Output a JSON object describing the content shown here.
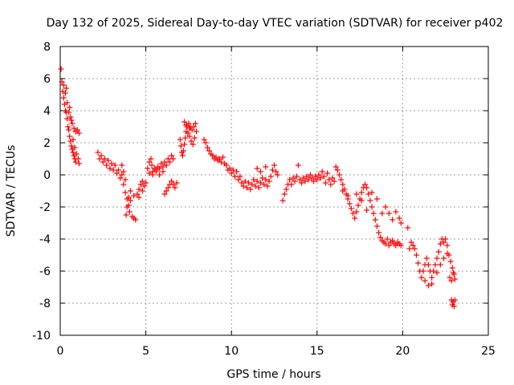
{
  "chart_data": {
    "type": "scatter",
    "title": "Day 132 of 2025, Sidereal Day-to-day VTEC variation (SDTVAR) for receiver p402",
    "xlabel": "GPS time / hours",
    "ylabel": "SDTVAR / TECUs",
    "xlim": [
      0,
      25
    ],
    "ylim": [
      -10,
      8
    ],
    "xticks": [
      0,
      5,
      10,
      15,
      20,
      25
    ],
    "yticks": [
      -10,
      -8,
      -6,
      -4,
      -2,
      0,
      2,
      4,
      6,
      8
    ],
    "grid": true,
    "marker": "+",
    "color": "#ff0000",
    "series": [
      {
        "name": "p402",
        "points": [
          [
            0.05,
            6.6
          ],
          [
            0.1,
            5.8
          ],
          [
            0.15,
            5.2
          ],
          [
            0.2,
            4.8
          ],
          [
            0.25,
            4.4
          ],
          [
            0.3,
            4.0
          ],
          [
            0.35,
            3.9
          ],
          [
            0.4,
            3.5
          ],
          [
            0.45,
            3.0
          ],
          [
            0.5,
            2.8
          ],
          [
            0.55,
            2.4
          ],
          [
            0.6,
            2.1
          ],
          [
            0.65,
            1.8
          ],
          [
            0.7,
            1.6
          ],
          [
            0.75,
            1.4
          ],
          [
            0.8,
            1.2
          ],
          [
            0.85,
            1.0
          ],
          [
            0.9,
            0.8
          ],
          [
            0.2,
            5.6
          ],
          [
            0.3,
            5.1
          ],
          [
            0.4,
            4.5
          ],
          [
            0.5,
            3.9
          ],
          [
            0.6,
            3.6
          ],
          [
            0.7,
            3.2
          ],
          [
            0.8,
            2.9
          ],
          [
            0.9,
            2.7
          ],
          [
            1.0,
            2.8
          ],
          [
            1.1,
            2.6
          ],
          [
            0.35,
            5.4
          ],
          [
            0.55,
            4.2
          ],
          [
            0.65,
            3.4
          ],
          [
            0.75,
            2.2
          ],
          [
            0.85,
            1.7
          ],
          [
            0.95,
            1.3
          ],
          [
            1.05,
            1.0
          ],
          [
            1.1,
            0.7
          ],
          [
            2.2,
            1.4
          ],
          [
            2.3,
            1.0
          ],
          [
            2.4,
            1.2
          ],
          [
            2.5,
            0.8
          ],
          [
            2.6,
            1.0
          ],
          [
            2.7,
            0.6
          ],
          [
            2.8,
            0.9
          ],
          [
            2.9,
            0.4
          ],
          [
            3.0,
            0.7
          ],
          [
            3.1,
            0.3
          ],
          [
            3.2,
            0.6
          ],
          [
            3.3,
            0.1
          ],
          [
            3.4,
            0.3
          ],
          [
            3.5,
            -0.2
          ],
          [
            3.6,
            0.0
          ],
          [
            3.7,
            -0.6
          ],
          [
            3.8,
            -1.1
          ],
          [
            3.9,
            -1.5
          ],
          [
            4.0,
            -1.9
          ],
          [
            4.05,
            -2.3
          ],
          [
            3.85,
            -2.5
          ],
          [
            3.9,
            -2.0
          ],
          [
            4.0,
            -1.4
          ],
          [
            4.1,
            -1.0
          ],
          [
            4.2,
            -2.6
          ],
          [
            4.3,
            -2.7
          ],
          [
            4.4,
            -2.8
          ],
          [
            4.5,
            -1.2
          ],
          [
            4.6,
            -0.9
          ],
          [
            4.7,
            -0.6
          ],
          [
            4.8,
            -1.0
          ],
          [
            4.9,
            -0.7
          ],
          [
            5.0,
            -0.5
          ],
          [
            3.6,
            0.6
          ],
          [
            3.7,
            0.2
          ],
          [
            3.8,
            -0.3
          ],
          [
            4.1,
            -1.6
          ],
          [
            4.3,
            -1.3
          ],
          [
            4.6,
            -1.4
          ],
          [
            4.8,
            -0.4
          ],
          [
            5.1,
            0.4
          ],
          [
            5.2,
            0.8
          ],
          [
            5.3,
            1.0
          ],
          [
            5.35,
            0.6
          ],
          [
            5.4,
            0.2
          ],
          [
            5.5,
            0.4
          ],
          [
            5.6,
            0.3
          ],
          [
            5.7,
            0.5
          ],
          [
            5.8,
            0.4
          ],
          [
            5.9,
            0.7
          ],
          [
            6.0,
            0.5
          ],
          [
            6.1,
            0.8
          ],
          [
            6.2,
            0.6
          ],
          [
            6.3,
            1.0
          ],
          [
            6.4,
            0.8
          ],
          [
            6.5,
            1.2
          ],
          [
            6.6,
            1.0
          ],
          [
            5.2,
            0.1
          ],
          [
            5.4,
            0.0
          ],
          [
            5.6,
            0.2
          ],
          [
            5.8,
            0.0
          ],
          [
            6.0,
            0.2
          ],
          [
            6.1,
            -1.2
          ],
          [
            6.2,
            -1.0
          ],
          [
            6.3,
            -0.8
          ],
          [
            6.4,
            -0.6
          ],
          [
            6.5,
            -0.4
          ],
          [
            6.6,
            -0.6
          ],
          [
            6.7,
            -0.8
          ],
          [
            6.8,
            -0.5
          ],
          [
            7.0,
            2.2
          ],
          [
            7.05,
            1.8
          ],
          [
            7.1,
            1.4
          ],
          [
            7.15,
            1.2
          ],
          [
            7.2,
            1.5
          ],
          [
            7.25,
            1.9
          ],
          [
            7.3,
            2.3
          ],
          [
            7.35,
            2.7
          ],
          [
            7.4,
            3.0
          ],
          [
            7.5,
            3.2
          ],
          [
            7.6,
            3.0
          ],
          [
            7.7,
            2.8
          ],
          [
            7.8,
            3.0
          ],
          [
            7.9,
            3.2
          ],
          [
            7.95,
            2.7
          ],
          [
            7.45,
            2.6
          ],
          [
            7.55,
            2.4
          ],
          [
            7.65,
            2.1
          ],
          [
            7.75,
            1.9
          ],
          [
            7.85,
            2.3
          ],
          [
            7.25,
            3.3
          ],
          [
            7.35,
            3.1
          ],
          [
            7.55,
            2.9
          ],
          [
            8.4,
            2.2
          ],
          [
            8.5,
            2.0
          ],
          [
            8.6,
            1.7
          ],
          [
            8.7,
            1.5
          ],
          [
            8.8,
            1.3
          ],
          [
            8.9,
            1.2
          ],
          [
            9.0,
            1.0
          ],
          [
            9.1,
            1.1
          ],
          [
            9.2,
            0.9
          ],
          [
            9.3,
            1.0
          ],
          [
            9.4,
            0.8
          ],
          [
            9.5,
            1.1
          ],
          [
            9.6,
            0.7
          ],
          [
            9.7,
            0.6
          ],
          [
            9.8,
            0.3
          ],
          [
            9.9,
            0.4
          ],
          [
            10.0,
            0.1
          ],
          [
            10.1,
            0.3
          ],
          [
            10.2,
            -0.1
          ],
          [
            10.3,
            0.2
          ],
          [
            10.4,
            -0.3
          ],
          [
            10.5,
            -0.1
          ],
          [
            10.6,
            -0.5
          ],
          [
            10.7,
            -0.7
          ],
          [
            10.8,
            -0.4
          ],
          [
            10.9,
            -0.8
          ],
          [
            11.0,
            -0.5
          ],
          [
            11.1,
            -0.9
          ],
          [
            11.2,
            -0.6
          ],
          [
            11.3,
            -0.3
          ],
          [
            11.4,
            -0.7
          ],
          [
            11.5,
            -0.4
          ],
          [
            11.6,
            -0.8
          ],
          [
            11.7,
            -0.5
          ],
          [
            11.8,
            -0.2
          ],
          [
            11.9,
            -0.6
          ],
          [
            12.0,
            -0.3
          ],
          [
            12.1,
            -0.7
          ],
          [
            12.2,
            -0.4
          ],
          [
            12.3,
            -0.1
          ],
          [
            12.4,
            0.3
          ],
          [
            12.5,
            0.6
          ],
          [
            12.6,
            0.2
          ],
          [
            12.7,
            0.0
          ],
          [
            11.5,
            0.4
          ],
          [
            11.7,
            0.2
          ],
          [
            12.0,
            0.5
          ],
          [
            13.0,
            -1.6
          ],
          [
            13.1,
            -1.2
          ],
          [
            13.2,
            -0.9
          ],
          [
            13.3,
            -0.6
          ],
          [
            13.4,
            -0.3
          ],
          [
            13.5,
            -0.6
          ],
          [
            13.6,
            -0.2
          ],
          [
            13.7,
            -0.4
          ],
          [
            13.8,
            -0.1
          ],
          [
            13.9,
            0.6
          ],
          [
            14.0,
            -0.3
          ],
          [
            14.1,
            -0.5
          ],
          [
            14.2,
            -0.2
          ],
          [
            14.3,
            -0.4
          ],
          [
            14.4,
            -0.1
          ],
          [
            14.5,
            -0.3
          ],
          [
            14.6,
            0.0
          ],
          [
            14.7,
            -0.2
          ],
          [
            14.8,
            -0.4
          ],
          [
            14.9,
            -0.1
          ],
          [
            15.0,
            -0.3
          ],
          [
            15.1,
            0.0
          ],
          [
            15.2,
            -0.2
          ],
          [
            15.3,
            0.2
          ],
          [
            15.4,
            -0.1
          ],
          [
            15.5,
            -0.5
          ],
          [
            15.6,
            0.1
          ],
          [
            15.7,
            -0.3
          ],
          [
            15.8,
            -0.6
          ],
          [
            15.9,
            -0.2
          ],
          [
            16.0,
            -0.4
          ],
          [
            16.1,
            0.5
          ],
          [
            16.2,
            0.3
          ],
          [
            16.3,
            0.0
          ],
          [
            16.4,
            -0.3
          ],
          [
            16.5,
            -0.6
          ],
          [
            16.6,
            -0.9
          ],
          [
            16.7,
            -1.2
          ],
          [
            16.8,
            -1.5
          ],
          [
            16.9,
            -1.8
          ],
          [
            17.0,
            -2.1
          ],
          [
            17.1,
            -2.4
          ],
          [
            17.2,
            -2.7
          ],
          [
            17.3,
            -2.3
          ],
          [
            17.4,
            -1.9
          ],
          [
            17.5,
            -1.5
          ],
          [
            17.6,
            -1.1
          ],
          [
            17.7,
            -0.8
          ],
          [
            17.8,
            -0.6
          ],
          [
            17.9,
            -0.8
          ],
          [
            18.0,
            -1.2
          ],
          [
            18.1,
            -1.6
          ],
          [
            18.2,
            -2.0
          ],
          [
            18.3,
            -2.4
          ],
          [
            18.4,
            -2.8
          ],
          [
            18.5,
            -3.2
          ],
          [
            18.6,
            -3.6
          ],
          [
            18.7,
            -3.9
          ],
          [
            18.8,
            -4.1
          ],
          [
            18.9,
            -4.2
          ],
          [
            19.0,
            -4.3
          ],
          [
            19.1,
            -4.0
          ],
          [
            19.2,
            -4.4
          ],
          [
            19.3,
            -4.2
          ],
          [
            19.4,
            -4.1
          ],
          [
            19.5,
            -4.3
          ],
          [
            19.6,
            -4.4
          ],
          [
            19.7,
            -4.2
          ],
          [
            19.8,
            -4.3
          ],
          [
            19.9,
            -4.4
          ],
          [
            17.3,
            -1.2
          ],
          [
            17.6,
            -1.6
          ],
          [
            17.9,
            -2.2
          ],
          [
            18.2,
            -1.1
          ],
          [
            18.5,
            -1.5
          ],
          [
            18.8,
            -2.4
          ],
          [
            19.0,
            -2.0
          ],
          [
            19.2,
            -2.4
          ],
          [
            19.4,
            -2.8
          ],
          [
            19.6,
            -2.3
          ],
          [
            19.8,
            -2.7
          ],
          [
            19.9,
            -3.0
          ],
          [
            16.5,
            -1.0
          ],
          [
            16.8,
            -1.3
          ],
          [
            20.3,
            -3.3
          ],
          [
            20.4,
            -4.6
          ],
          [
            20.5,
            -4.2
          ],
          [
            20.6,
            -4.4
          ],
          [
            20.7,
            -4.6
          ],
          [
            20.8,
            -5.0
          ],
          [
            20.9,
            -5.5
          ],
          [
            21.0,
            -6.0
          ],
          [
            21.1,
            -6.4
          ],
          [
            21.2,
            -6.0
          ],
          [
            21.3,
            -5.6
          ],
          [
            21.4,
            -5.2
          ],
          [
            21.5,
            -5.6
          ],
          [
            21.6,
            -6.0
          ],
          [
            21.7,
            -6.4
          ],
          [
            21.8,
            -6.0
          ],
          [
            21.9,
            -5.6
          ],
          [
            22.0,
            -5.2
          ],
          [
            22.1,
            -4.8
          ],
          [
            22.2,
            -4.3
          ],
          [
            22.3,
            -4.0
          ],
          [
            22.4,
            -4.2
          ],
          [
            22.5,
            -4.0
          ],
          [
            22.6,
            -4.4
          ],
          [
            22.7,
            -5.0
          ],
          [
            22.8,
            -5.4
          ],
          [
            22.9,
            -5.8
          ],
          [
            23.0,
            -6.2
          ],
          [
            23.05,
            -6.5
          ],
          [
            22.85,
            -7.8
          ],
          [
            22.9,
            -8.1
          ],
          [
            22.95,
            -7.9
          ],
          [
            23.0,
            -8.2
          ],
          [
            23.05,
            -7.8
          ],
          [
            21.3,
            -6.6
          ],
          [
            21.5,
            -6.9
          ],
          [
            21.7,
            -6.8
          ],
          [
            22.0,
            -6.1
          ],
          [
            22.2,
            -5.6
          ],
          [
            22.4,
            -5.2
          ],
          [
            22.6,
            -4.9
          ],
          [
            22.75,
            -6.4
          ],
          [
            22.85,
            -6.6
          ],
          [
            22.95,
            -6.1
          ]
        ]
      }
    ]
  }
}
